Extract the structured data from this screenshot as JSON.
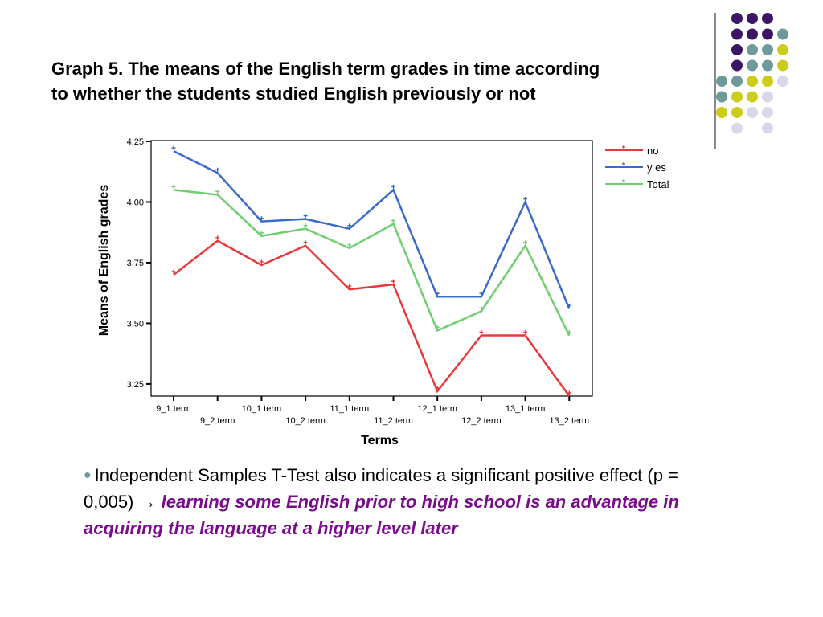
{
  "slide": {
    "title_line1": "Graph 5. The means of the English term grades in time according",
    "title_line2": "to whether the students studied English previously or not",
    "bullet_prefix": "Independent Samples T-Test also indicates a significant positive effect (p = 0,005) →",
    "bullet_emphasis": "learning some English prior to high school is an advantage in acquiring the language at a higher level later",
    "bullet_color": "#6f9a9c",
    "emphasis_color": "#7a0b8c",
    "decor_colors": [
      "#3d1566",
      "#6f9a9c",
      "#cccc1a",
      "#d8d8e8"
    ]
  },
  "chart_data": {
    "type": "line",
    "xlabel": "Terms",
    "ylabel": "Means of English grades",
    "ylim": [
      3.2,
      4.25
    ],
    "yticks": [
      "4,25",
      "4,00",
      "3,75",
      "3,50",
      "3,25"
    ],
    "ytick_values": [
      4.25,
      4.0,
      3.75,
      3.5,
      3.25
    ],
    "categories": [
      "9_1 term",
      "9_2 term",
      "10_1 term",
      "10_2 term",
      "11_1 term",
      "11_2 term",
      "12_1 term",
      "12_2 term",
      "13_1 term",
      "13_2 term"
    ],
    "grid": false,
    "legend_position": "top-right",
    "series": [
      {
        "name": "no",
        "color": "#e8393a",
        "values": [
          3.7,
          3.84,
          3.74,
          3.82,
          3.64,
          3.66,
          3.22,
          3.45,
          3.45,
          3.2
        ]
      },
      {
        "name": "y es",
        "color": "#3a6bc8",
        "values": [
          4.21,
          4.12,
          3.92,
          3.93,
          3.89,
          4.05,
          3.61,
          3.61,
          4.0,
          3.56
        ]
      },
      {
        "name": "Total",
        "color": "#6dcf6d",
        "values": [
          4.05,
          4.03,
          3.86,
          3.89,
          3.81,
          3.91,
          3.47,
          3.55,
          3.82,
          3.45
        ]
      }
    ]
  }
}
